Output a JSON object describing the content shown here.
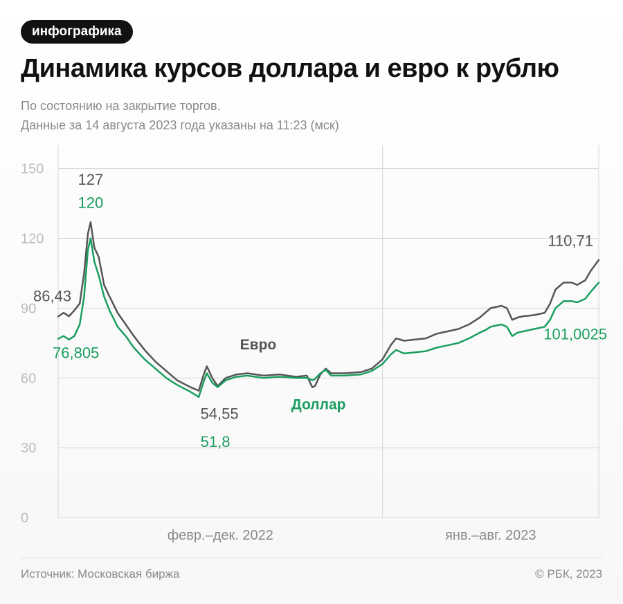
{
  "badge": "инфографика",
  "title": "Динамика курсов доллара и евро к рублю",
  "subtitle_1": "По состоянию на закрытие торгов.",
  "subtitle_2": "Данные за 14 августа 2023 года указаны на 11:23 (мск)",
  "footer": {
    "source": "Источник: Московская биржа",
    "copyright": "© РБК, 2023"
  },
  "colors": {
    "euro": "#555555",
    "dollar": "#1a9e5f",
    "grid": "#d6d6d6",
    "tick": "#bdbdbd"
  },
  "chart_data": {
    "type": "line",
    "title": "Динамика курсов доллара и евро к рублю",
    "ylim": [
      0,
      160
    ],
    "yticks": [
      "0",
      "30",
      "60",
      "90",
      "120",
      "150"
    ],
    "ytick_values": [
      0,
      30,
      60,
      90,
      120,
      150
    ],
    "periods": [
      {
        "label": "февр.–дек. 2022",
        "start": 0,
        "end": 0.6
      },
      {
        "label": "янв.–авг. 2023",
        "start": 0.6,
        "end": 1.0
      }
    ],
    "grid": true,
    "series": [
      {
        "name": "Евро",
        "color": "#555555",
        "points": [
          [
            0.0,
            86.43
          ],
          [
            0.01,
            88
          ],
          [
            0.02,
            86.5
          ],
          [
            0.03,
            89
          ],
          [
            0.04,
            92
          ],
          [
            0.048,
            105
          ],
          [
            0.055,
            122
          ],
          [
            0.06,
            127
          ],
          [
            0.067,
            116
          ],
          [
            0.075,
            112
          ],
          [
            0.085,
            100
          ],
          [
            0.095,
            95
          ],
          [
            0.11,
            88
          ],
          [
            0.125,
            83
          ],
          [
            0.14,
            78
          ],
          [
            0.16,
            72
          ],
          [
            0.18,
            67
          ],
          [
            0.2,
            63
          ],
          [
            0.22,
            59
          ],
          [
            0.245,
            56
          ],
          [
            0.26,
            54.55
          ],
          [
            0.27,
            62
          ],
          [
            0.275,
            65
          ],
          [
            0.285,
            60
          ],
          [
            0.295,
            56.5
          ],
          [
            0.31,
            60
          ],
          [
            0.33,
            61.5
          ],
          [
            0.35,
            62
          ],
          [
            0.38,
            61
          ],
          [
            0.41,
            61.5
          ],
          [
            0.44,
            60.5
          ],
          [
            0.46,
            61
          ],
          [
            0.47,
            56
          ],
          [
            0.475,
            56.5
          ],
          [
            0.485,
            61.5
          ],
          [
            0.495,
            64
          ],
          [
            0.505,
            62
          ],
          [
            0.53,
            62
          ],
          [
            0.56,
            62.5
          ],
          [
            0.58,
            64
          ],
          [
            0.6,
            68
          ],
          [
            0.615,
            74
          ],
          [
            0.625,
            77
          ],
          [
            0.64,
            76
          ],
          [
            0.66,
            76.5
          ],
          [
            0.68,
            77
          ],
          [
            0.7,
            79
          ],
          [
            0.72,
            80
          ],
          [
            0.74,
            81
          ],
          [
            0.76,
            83
          ],
          [
            0.78,
            86
          ],
          [
            0.79,
            88
          ],
          [
            0.8,
            90
          ],
          [
            0.82,
            91
          ],
          [
            0.83,
            90
          ],
          [
            0.84,
            85
          ],
          [
            0.85,
            86
          ],
          [
            0.86,
            86.5
          ],
          [
            0.88,
            87
          ],
          [
            0.9,
            88
          ],
          [
            0.91,
            92
          ],
          [
            0.92,
            98
          ],
          [
            0.935,
            101
          ],
          [
            0.95,
            101
          ],
          [
            0.96,
            100
          ],
          [
            0.975,
            102
          ],
          [
            0.985,
            106
          ],
          [
            1.0,
            110.71
          ]
        ],
        "labels": [
          {
            "text": "86,43",
            "x": 0.0,
            "y": 86.43,
            "pos": "left-above"
          },
          {
            "text": "127",
            "x": 0.06,
            "y": 127,
            "pos": "above-high"
          },
          {
            "text": "54,55",
            "x": 0.26,
            "y": 54.55,
            "pos": "below"
          },
          {
            "text": "110,71",
            "x": 1.0,
            "y": 110.71,
            "pos": "above-left"
          },
          {
            "text": "Евро",
            "x": 0.37,
            "y": 61.5,
            "pos": "name"
          }
        ]
      },
      {
        "name": "Доллар",
        "color": "#1a9e5f",
        "points": [
          [
            0.0,
            76.805
          ],
          [
            0.01,
            78
          ],
          [
            0.02,
            76.5
          ],
          [
            0.03,
            78
          ],
          [
            0.04,
            83
          ],
          [
            0.048,
            95
          ],
          [
            0.055,
            115
          ],
          [
            0.06,
            120
          ],
          [
            0.067,
            110
          ],
          [
            0.075,
            104
          ],
          [
            0.085,
            95
          ],
          [
            0.095,
            89
          ],
          [
            0.11,
            82
          ],
          [
            0.125,
            78
          ],
          [
            0.14,
            73
          ],
          [
            0.16,
            68
          ],
          [
            0.18,
            64
          ],
          [
            0.2,
            60
          ],
          [
            0.22,
            57
          ],
          [
            0.245,
            54
          ],
          [
            0.26,
            51.8
          ],
          [
            0.27,
            59
          ],
          [
            0.275,
            62
          ],
          [
            0.285,
            58
          ],
          [
            0.295,
            56
          ],
          [
            0.31,
            59
          ],
          [
            0.33,
            60.5
          ],
          [
            0.35,
            61
          ],
          [
            0.38,
            60
          ],
          [
            0.41,
            60.5
          ],
          [
            0.44,
            60
          ],
          [
            0.46,
            60
          ],
          [
            0.47,
            59
          ],
          [
            0.475,
            59.5
          ],
          [
            0.485,
            62
          ],
          [
            0.495,
            63.5
          ],
          [
            0.505,
            61
          ],
          [
            0.53,
            61
          ],
          [
            0.56,
            61.5
          ],
          [
            0.58,
            63
          ],
          [
            0.6,
            66
          ],
          [
            0.615,
            70
          ],
          [
            0.625,
            72
          ],
          [
            0.64,
            70.5
          ],
          [
            0.66,
            71
          ],
          [
            0.68,
            71.5
          ],
          [
            0.7,
            73
          ],
          [
            0.72,
            74
          ],
          [
            0.74,
            75
          ],
          [
            0.76,
            77
          ],
          [
            0.78,
            79.5
          ],
          [
            0.79,
            80.5
          ],
          [
            0.8,
            82
          ],
          [
            0.82,
            83
          ],
          [
            0.83,
            82
          ],
          [
            0.84,
            78
          ],
          [
            0.85,
            79.5
          ],
          [
            0.86,
            80
          ],
          [
            0.88,
            81
          ],
          [
            0.9,
            82
          ],
          [
            0.91,
            85
          ],
          [
            0.92,
            90
          ],
          [
            0.935,
            93
          ],
          [
            0.95,
            93
          ],
          [
            0.96,
            92.5
          ],
          [
            0.975,
            94
          ],
          [
            0.985,
            97
          ],
          [
            1.0,
            101.0025
          ]
        ],
        "labels": [
          {
            "text": "76,805",
            "x": 0.0,
            "y": 76.805,
            "pos": "left-below"
          },
          {
            "text": "120",
            "x": 0.06,
            "y": 120,
            "pos": "above"
          },
          {
            "text": "51,8",
            "x": 0.26,
            "y": 51.8,
            "pos": "below2"
          },
          {
            "text": "101,0025",
            "x": 1.0,
            "y": 101.0025,
            "pos": "below-left"
          },
          {
            "text": "Доллар",
            "x": 0.52,
            "y": 59,
            "pos": "name"
          }
        ]
      }
    ]
  }
}
